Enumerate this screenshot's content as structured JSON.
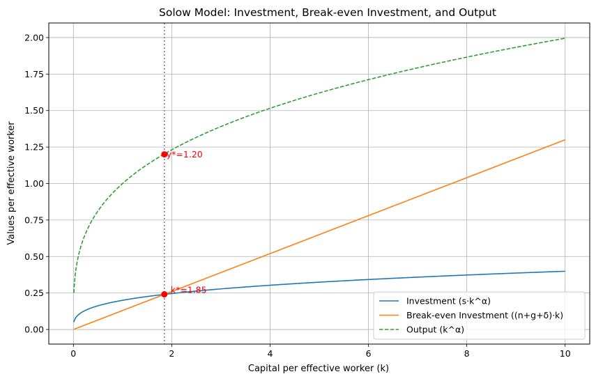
{
  "chart_data": {
    "type": "line",
    "title": "Solow Model: Investment, Break-even Investment, and Output",
    "xlabel": "Capital per effective worker (k)",
    "ylabel": "Values per effective worker",
    "xlim": [
      -0.5,
      10.5
    ],
    "ylim": [
      -0.1,
      2.1
    ],
    "xticks": [
      0,
      2,
      4,
      6,
      8,
      10
    ],
    "yticks": [
      0.0,
      0.25,
      0.5,
      0.75,
      1.0,
      1.25,
      1.5,
      1.75,
      2.0
    ],
    "grid": true,
    "legend_position": "lower-right",
    "params": {
      "s": 0.2,
      "alpha": 0.3,
      "breakeven_rate": 0.13,
      "k_start": 0.01,
      "k_end": 10
    },
    "series": [
      {
        "name": "Investment (s·k^α)",
        "color": "#1f77b4",
        "style": "solid",
        "formula": "investment"
      },
      {
        "name": "Break-even Investment ((n+g+δ)·k)",
        "color": "#ff7f0e",
        "style": "solid",
        "formula": "breakeven"
      },
      {
        "name": "Output (k^α)",
        "color": "#2ca02c",
        "style": "dashed",
        "formula": "output"
      }
    ],
    "steady_state": {
      "k": 1.85,
      "y": 1.2,
      "investment": 0.241,
      "vline_color": "#808080",
      "marker_color": "#ff0000",
      "k_label": "k*=1.85",
      "y_label": "y*=1.20"
    }
  }
}
